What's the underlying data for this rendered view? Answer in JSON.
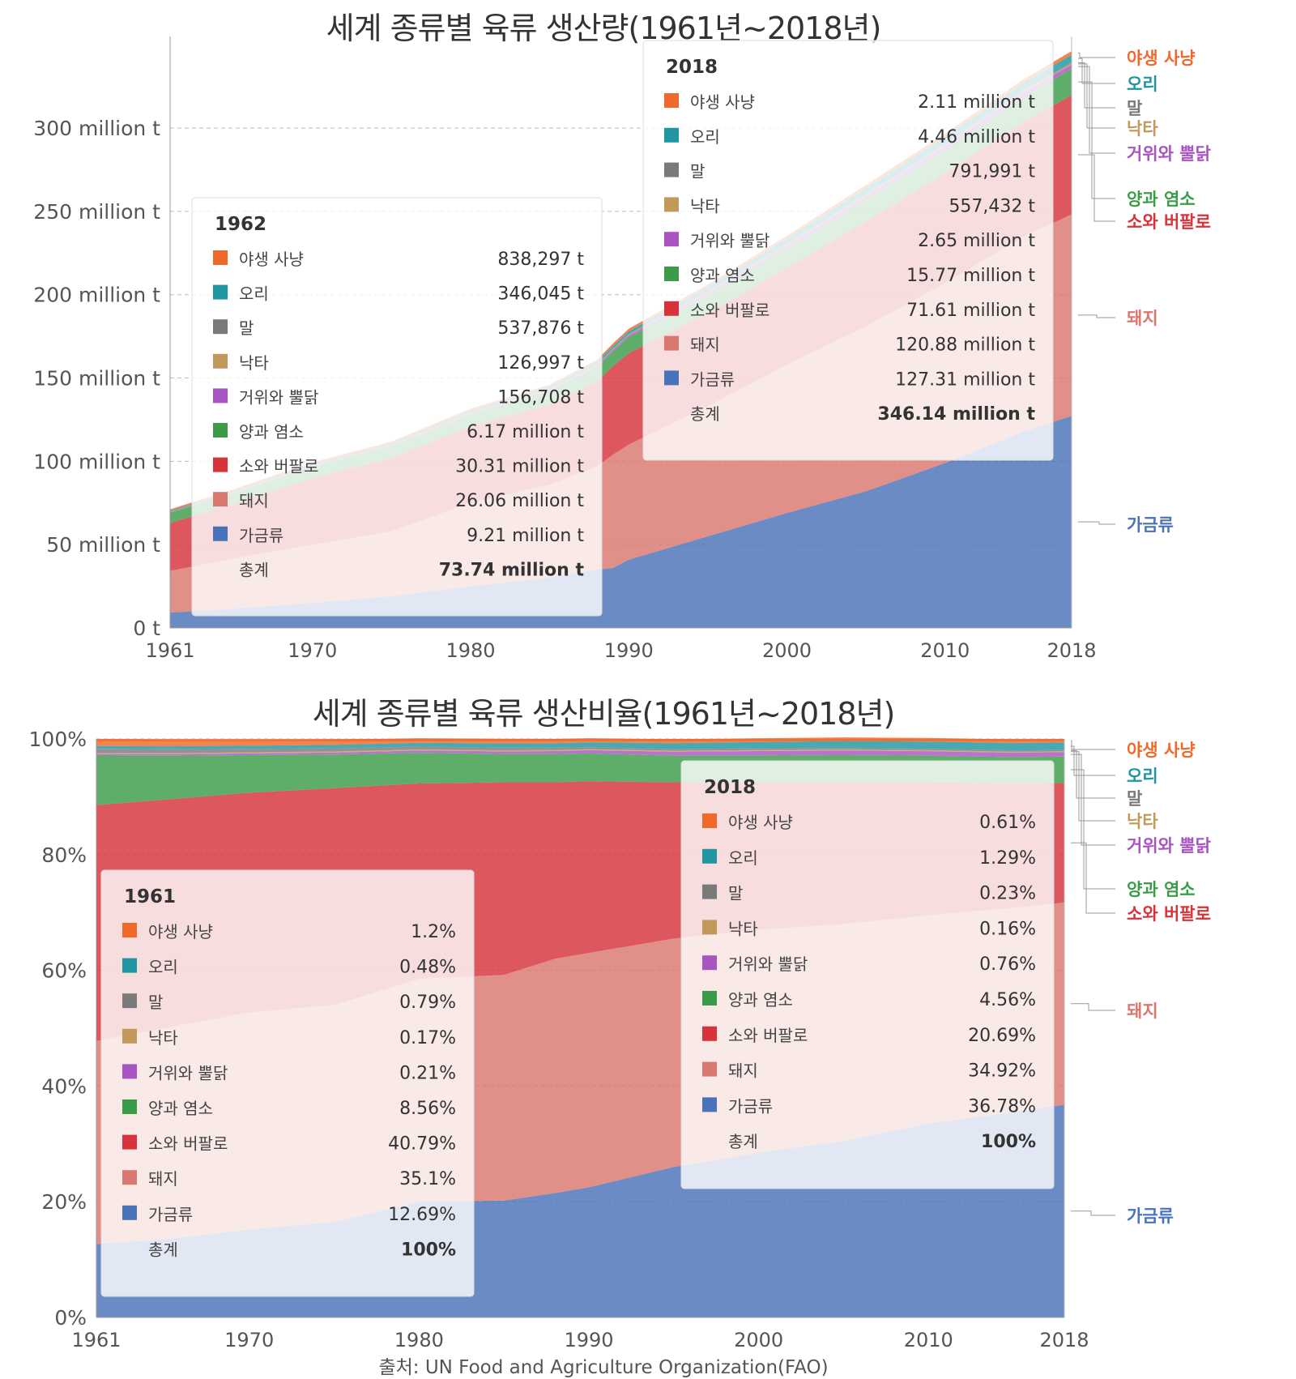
{
  "chart_data": [
    {
      "type": "area",
      "stacked": true,
      "title": "세계 종류별 육류 생산량(1961년~2018년)",
      "x_ticks": [
        "1961",
        "1970",
        "1980",
        "1990",
        "2000",
        "2010",
        "2018"
      ],
      "y_ticks": [
        "0 t",
        "50 million t",
        "100 million t",
        "150 million t",
        "200 million t",
        "250 million t",
        "300 million t"
      ],
      "y_unit": "million t",
      "ylim": [
        0,
        355
      ],
      "grid": true,
      "x": [
        1961,
        1965,
        1970,
        1975,
        1980,
        1985,
        1988,
        1989,
        1990,
        1995,
        2000,
        2005,
        2010,
        2015,
        2018
      ],
      "series": [
        {
          "name": "가금류",
          "color": "#4a72b8",
          "values": [
            9.2,
            11.5,
            15,
            19,
            25,
            30,
            35,
            36,
            41,
            55,
            69,
            82,
            99,
            118,
            127.3
          ]
        },
        {
          "name": "돼지",
          "color": "#d9786f",
          "values": [
            25,
            30,
            35,
            39,
            50,
            56,
            62,
            68,
            69,
            78,
            89,
            99,
            108,
            117,
            120.9
          ]
        },
        {
          "name": "소와 버팔로",
          "color": "#d6333a",
          "values": [
            28.8,
            33,
            40,
            44,
            46,
            48,
            51,
            53,
            55,
            56,
            58,
            63,
            66,
            69,
            71.6
          ]
        },
        {
          "name": "양과 염소",
          "color": "#3a9c48",
          "values": [
            6.2,
            6.5,
            6.8,
            7,
            7.2,
            8,
            8.5,
            9,
            9.5,
            10.5,
            11.5,
            13,
            14,
            15.2,
            15.8
          ]
        },
        {
          "name": "거위와 뿔닭",
          "color": "#a855c2",
          "values": [
            0.15,
            0.2,
            0.3,
            0.4,
            0.5,
            0.7,
            0.9,
            1,
            1.1,
            1.7,
            2,
            2.3,
            2.5,
            2.6,
            2.65
          ]
        },
        {
          "name": "낙타",
          "color": "#c19a5b",
          "values": [
            0.13,
            0.15,
            0.2,
            0.25,
            0.3,
            0.32,
            0.34,
            0.35,
            0.37,
            0.4,
            0.42,
            0.45,
            0.5,
            0.54,
            0.56
          ]
        },
        {
          "name": "말",
          "color": "#7a7a7a",
          "values": [
            0.54,
            0.55,
            0.57,
            0.58,
            0.6,
            0.62,
            0.63,
            0.63,
            0.64,
            0.66,
            0.7,
            0.73,
            0.76,
            0.78,
            0.79
          ]
        },
        {
          "name": "오리",
          "color": "#1f96a0",
          "values": [
            0.35,
            0.4,
            0.5,
            0.6,
            0.8,
            1.1,
            1.3,
            1.4,
            1.5,
            2.3,
            3,
            3.6,
            4,
            4.3,
            4.46
          ]
        },
        {
          "name": "야생 사냥",
          "color": "#f0692a",
          "values": [
            0.84,
            0.9,
            1,
            1.1,
            1.2,
            1.3,
            1.35,
            1.4,
            1.45,
            1.6,
            1.75,
            1.85,
            1.95,
            2.05,
            2.11
          ]
        }
      ],
      "tooltips": [
        {
          "year": "1962",
          "total_label": "총계",
          "rows": [
            {
              "name": "야생 사냥",
              "value": "838,297 t"
            },
            {
              "name": "오리",
              "value": "346,045 t"
            },
            {
              "name": "말",
              "value": "537,876 t"
            },
            {
              "name": "낙타",
              "value": "126,997 t"
            },
            {
              "name": "거위와 뿔닭",
              "value": "156,708 t"
            },
            {
              "name": "양과 염소",
              "value": "6.17 million t"
            },
            {
              "name": "소와 버팔로",
              "value": "30.31 million t"
            },
            {
              "name": "돼지",
              "value": "26.06 million t"
            },
            {
              "name": "가금류",
              "value": "9.21 million t"
            }
          ],
          "total": "73.74 million t"
        },
        {
          "year": "2018",
          "total_label": "총계",
          "rows": [
            {
              "name": "야생 사냥",
              "value": "2.11 million t"
            },
            {
              "name": "오리",
              "value": "4.46 million t"
            },
            {
              "name": "말",
              "value": "791,991 t"
            },
            {
              "name": "낙타",
              "value": "557,432 t"
            },
            {
              "name": "거위와 뿔닭",
              "value": "2.65 million t"
            },
            {
              "name": "양과 염소",
              "value": "15.77 million t"
            },
            {
              "name": "소와 버팔로",
              "value": "71.61 million t"
            },
            {
              "name": "돼지",
              "value": "120.88 million t"
            },
            {
              "name": "가금류",
              "value": "127.31 million t"
            }
          ],
          "total": "346.14 million t"
        }
      ]
    },
    {
      "type": "area",
      "stacked": true,
      "normalized": true,
      "title": "세계 종류별 육류 생산비율(1961년~2018년)",
      "x_ticks": [
        "1961",
        "1970",
        "1980",
        "1990",
        "2000",
        "2010",
        "2018"
      ],
      "y_ticks": [
        "0%",
        "20%",
        "40%",
        "60%",
        "80%",
        "100%"
      ],
      "ylim": [
        0,
        100
      ],
      "grid": true,
      "x": [
        1961,
        1965,
        1970,
        1975,
        1980,
        1985,
        1988,
        1990,
        1995,
        2000,
        2005,
        2010,
        2015,
        2018
      ],
      "series": [
        {
          "name": "가금류",
          "color": "#4a72b8",
          "values": [
            12.69,
            13.5,
            15.2,
            16.5,
            20,
            20.2,
            21.5,
            22.5,
            26,
            28.5,
            30.5,
            33.5,
            35.5,
            36.78
          ]
        },
        {
          "name": "돼지",
          "color": "#d9786f",
          "values": [
            35.1,
            36.5,
            37.5,
            37.5,
            38.5,
            39,
            40.5,
            40.5,
            39.5,
            38.5,
            37.5,
            36,
            35.3,
            34.92
          ]
        },
        {
          "name": "소와 버팔로",
          "color": "#d6333a",
          "values": [
            40.79,
            39.5,
            38,
            37.5,
            33.8,
            33.3,
            30.5,
            29.7,
            27,
            25.5,
            24.5,
            23,
            21.5,
            20.69
          ]
        },
        {
          "name": "양과 염소",
          "color": "#3a9c48",
          "values": [
            8.56,
            7.6,
            6.5,
            5.8,
            5.3,
            4.9,
            4.9,
            4.8,
            4.6,
            4.6,
            4.7,
            4.6,
            4.55,
            4.56
          ]
        },
        {
          "name": "거위와 뿔닭",
          "color": "#a855c2",
          "values": [
            0.21,
            0.25,
            0.3,
            0.35,
            0.4,
            0.45,
            0.5,
            0.55,
            0.7,
            0.8,
            0.8,
            0.78,
            0.77,
            0.76
          ]
        },
        {
          "name": "낙타",
          "color": "#c19a5b",
          "values": [
            0.17,
            0.17,
            0.18,
            0.18,
            0.18,
            0.18,
            0.17,
            0.17,
            0.17,
            0.17,
            0.17,
            0.17,
            0.16,
            0.16
          ]
        },
        {
          "name": "말",
          "color": "#7a7a7a",
          "values": [
            0.79,
            0.7,
            0.6,
            0.55,
            0.5,
            0.45,
            0.4,
            0.35,
            0.3,
            0.3,
            0.27,
            0.25,
            0.24,
            0.23
          ]
        },
        {
          "name": "오리",
          "color": "#1f96a0",
          "values": [
            0.48,
            0.5,
            0.55,
            0.6,
            0.65,
            0.75,
            0.8,
            0.85,
            1.0,
            1.1,
            1.2,
            1.25,
            1.28,
            1.29
          ]
        },
        {
          "name": "야생 사냥",
          "color": "#f0692a",
          "values": [
            1.2,
            1.1,
            1.0,
            0.9,
            0.8,
            0.8,
            0.75,
            0.7,
            0.68,
            0.65,
            0.63,
            0.62,
            0.61,
            0.61
          ]
        }
      ],
      "tooltips": [
        {
          "year": "1961",
          "total_label": "총계",
          "rows": [
            {
              "name": "야생 사냥",
              "value": "1.2%"
            },
            {
              "name": "오리",
              "value": "0.48%"
            },
            {
              "name": "말",
              "value": "0.79%"
            },
            {
              "name": "낙타",
              "value": "0.17%"
            },
            {
              "name": "거위와 뿔닭",
              "value": "0.21%"
            },
            {
              "name": "양과 염소",
              "value": "8.56%"
            },
            {
              "name": "소와 버팔로",
              "value": "40.79%"
            },
            {
              "name": "돼지",
              "value": "35.1%"
            },
            {
              "name": "가금류",
              "value": "12.69%"
            }
          ],
          "total": "100%"
        },
        {
          "year": "2018",
          "total_label": "총계",
          "rows": [
            {
              "name": "야생 사냥",
              "value": "0.61%"
            },
            {
              "name": "오리",
              "value": "1.29%"
            },
            {
              "name": "말",
              "value": "0.23%"
            },
            {
              "name": "낙타",
              "value": "0.16%"
            },
            {
              "name": "거위와 뿔닭",
              "value": "0.76%"
            },
            {
              "name": "양과 염소",
              "value": "4.56%"
            },
            {
              "name": "소와 버팔로",
              "value": "20.69%"
            },
            {
              "name": "돼지",
              "value": "34.92%"
            },
            {
              "name": "가금류",
              "value": "36.78%"
            }
          ],
          "total": "100%"
        }
      ]
    }
  ],
  "source": "출처: UN Food and Agriculture Organization(FAO)"
}
